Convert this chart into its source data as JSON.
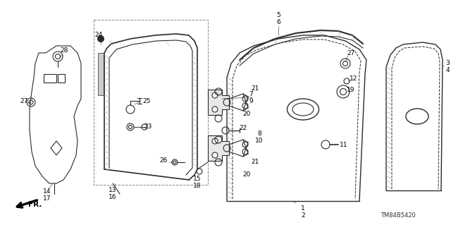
{
  "bg_color": "#ffffff",
  "line_color": "#2a2a2a",
  "part_number_code": "TM84B5420",
  "fig_width": 6.4,
  "fig_height": 3.19,
  "dpi": 100
}
